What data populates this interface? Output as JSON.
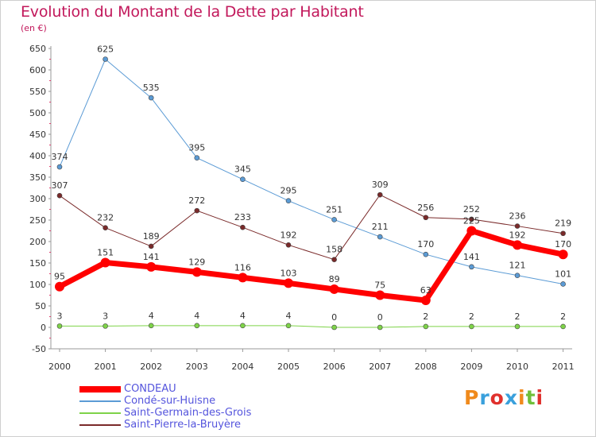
{
  "page": {
    "title": "Evolution du Montant de la Dette par Habitant",
    "subtitle": "(en €)",
    "logo": "Proxiti",
    "logo_colors": [
      "#f08a1c",
      "#3aa0dc",
      "#e0302c",
      "#3aa0dc",
      "#f08a1c",
      "#6fbf3a",
      "#e0302c"
    ]
  },
  "chart_data": {
    "type": "line",
    "title": "Evolution du Montant de la Dette par Habitant",
    "ylabel": "(en €)",
    "xlabel": "",
    "x": [
      "2000",
      "2001",
      "2002",
      "2003",
      "2004",
      "2005",
      "2006",
      "2007",
      "2008",
      "2009",
      "2010",
      "2011"
    ],
    "ylim": [
      -50,
      650
    ],
    "yticks": [
      -50,
      0,
      50,
      100,
      150,
      200,
      250,
      300,
      350,
      400,
      450,
      500,
      550,
      600,
      650
    ],
    "grid": false,
    "legend_position": "bottom-left",
    "series": [
      {
        "name": "CONDEAU",
        "color": "#ff0000",
        "values": [
          95,
          151,
          141,
          129,
          116,
          103,
          89,
          75,
          63,
          225,
          192,
          170
        ],
        "labels": [
          "95",
          "151",
          "141",
          "129",
          "116",
          "103",
          "89",
          "75",
          "63",
          "225",
          "192",
          "170"
        ]
      },
      {
        "name": "Condé-sur-Huisne",
        "color": "#5b9bd5",
        "values": [
          374,
          625,
          535,
          395,
          345,
          295,
          251,
          211,
          170,
          141,
          121,
          101
        ],
        "labels": [
          "374",
          "625",
          "535",
          "395",
          "345",
          "295",
          "251",
          "211",
          "170",
          "141",
          "121",
          "101"
        ]
      },
      {
        "name": "Saint-Germain-des-Grois",
        "color": "#7ed348",
        "values": [
          3,
          3,
          4,
          4,
          4,
          4,
          0,
          0,
          2,
          2,
          2,
          2
        ],
        "labels": [
          "3",
          "3",
          "4",
          "4",
          "4",
          "4",
          "0",
          "0",
          "2",
          "2",
          "2",
          "2"
        ]
      },
      {
        "name": "Saint-Pierre-la-Bruyère",
        "color": "#7a2a2a",
        "values": [
          307,
          232,
          189,
          272,
          233,
          192,
          158,
          309,
          256,
          252,
          236,
          219
        ],
        "labels": [
          "307",
          "232",
          "189",
          "272",
          "233",
          "192",
          "158",
          "309",
          "256",
          "252",
          "236",
          "219"
        ]
      }
    ]
  }
}
